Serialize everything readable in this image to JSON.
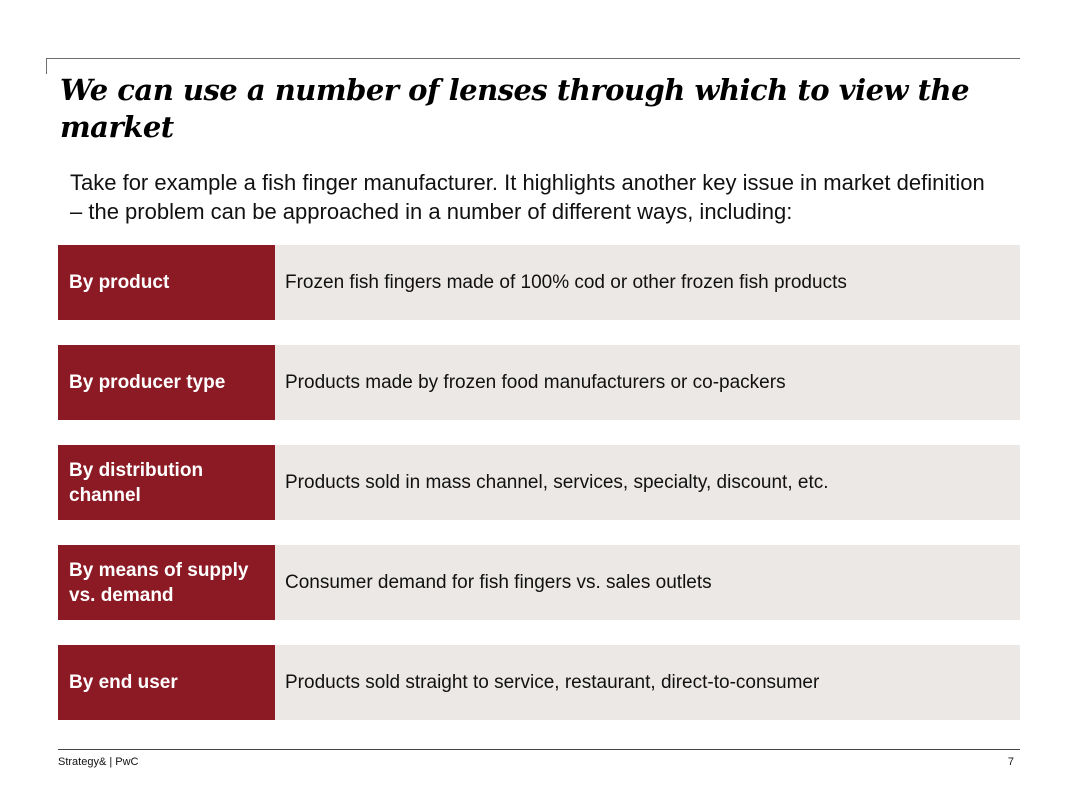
{
  "slide": {
    "title": "We can use a number of lenses through which to view the market",
    "intro": "Take for example a fish finger manufacturer. It highlights another key issue in market definition – the problem can be approached in a number of different ways, including:",
    "lenses": [
      {
        "label": "By product",
        "description": "Frozen fish fingers made of 100% cod or other frozen fish products"
      },
      {
        "label": "By producer type",
        "description": "Products made by frozen food manufacturers or co-packers"
      },
      {
        "label": "By distribution channel",
        "description": "Products sold in mass channel, services, specialty, discount, etc."
      },
      {
        "label": "By means of supply vs. demand",
        "description": "Consumer demand for fish fingers vs. sales outlets"
      },
      {
        "label": "By end user",
        "description": "Products sold straight to service, restaurant, direct-to-consumer"
      }
    ]
  },
  "footer": {
    "source": "Strategy& | PwC",
    "page_number": "7"
  },
  "colors": {
    "label_background": "#8c1a24",
    "description_background": "#ebe8e5"
  }
}
